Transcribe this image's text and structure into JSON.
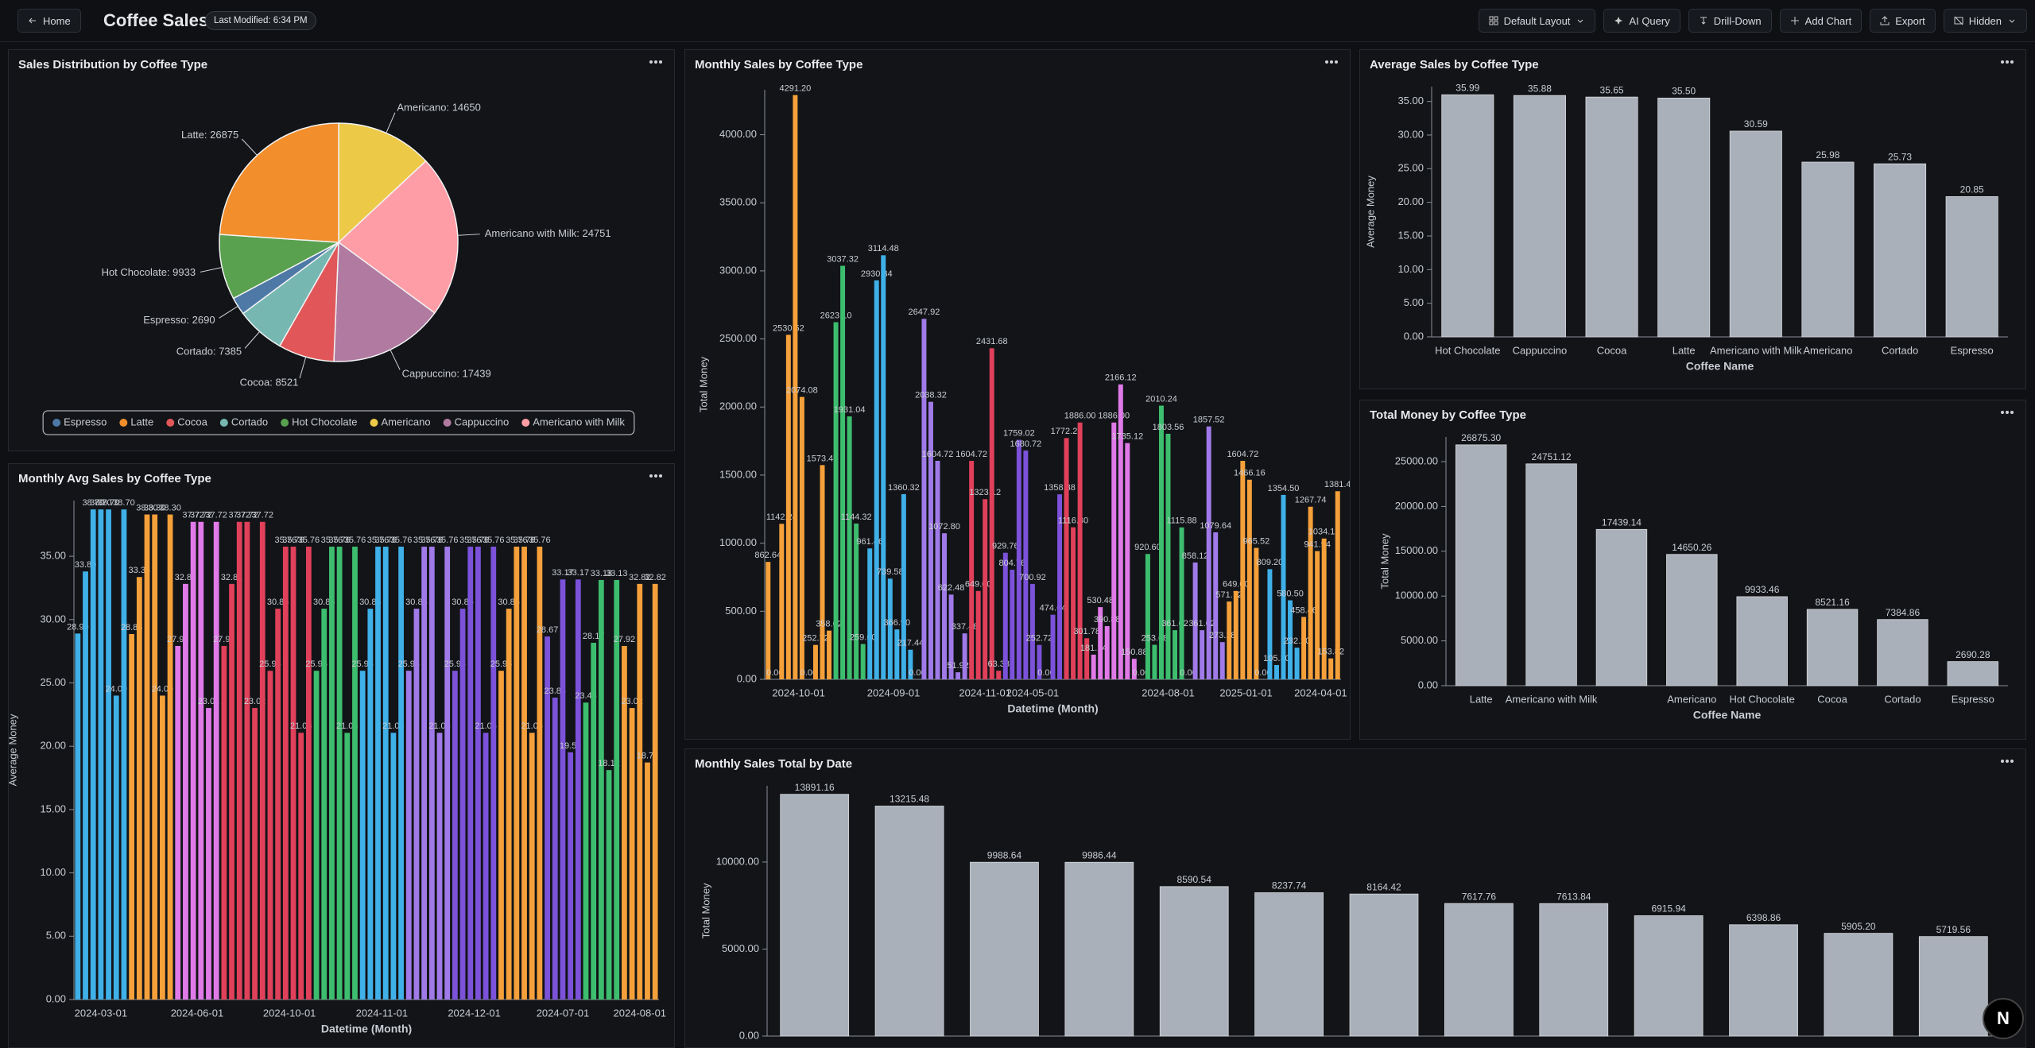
{
  "header": {
    "home": "Home",
    "title": "Coffee Sales",
    "modified": "Last Modified: 6:34 PM",
    "buttons": [
      "Default Layout",
      "AI Query",
      "Drill-Down",
      "Add Chart",
      "Export",
      "Hidden"
    ],
    "badge": "N"
  },
  "chart_data": [
    {
      "type": "pie",
      "title": "Sales Distribution by Coffee Type",
      "categories": [
        "Americano",
        "Americano with Milk",
        "Cappuccino",
        "Cocoa",
        "Cortado",
        "Espresso",
        "Hot Chocolate",
        "Latte"
      ],
      "values": [
        14650,
        24751,
        17439,
        8521,
        7385,
        2690,
        9933,
        26875
      ],
      "value_labels": [
        "Americano: 14650",
        "Americano with Milk: 24751",
        "Cappuccino: 17439",
        "Cocoa: 8521",
        "Cortado: 7385",
        "Espresso: 2690",
        "Hot Chocolate: 9933",
        "Latte: 26875"
      ],
      "colors": [
        "#edc948",
        "#ff9da7",
        "#b07aa1",
        "#e15759",
        "#76b7b2",
        "#4e79a7",
        "#59a14f",
        "#f28e2b"
      ],
      "legend": [
        "Espresso",
        "Latte",
        "Cocoa",
        "Cortado",
        "Hot Chocolate",
        "Americano",
        "Cappuccino",
        "Americano with Milk"
      ]
    },
    {
      "type": "bar",
      "title": "Monthly Sales by Coffee Type",
      "xlabel": "Datetime (Month)",
      "ylabel": "Total Money",
      "ylim": [
        0,
        4330
      ],
      "yticks": [
        {
          "value": 0,
          "label": "0.00"
        },
        {
          "value": 500,
          "label": "500.00"
        },
        {
          "value": 1000,
          "label": "1000.00"
        },
        {
          "value": 1500,
          "label": "1500.00"
        },
        {
          "value": 2000,
          "label": "2000.00"
        },
        {
          "value": 2500,
          "label": "2500.00"
        },
        {
          "value": 3000,
          "label": "3000.00"
        },
        {
          "value": 3500,
          "label": "3500.00"
        },
        {
          "value": 4000,
          "label": "4000.00"
        }
      ],
      "groups": [
        {
          "category": "2024-10-01",
          "color": "#f5a03a",
          "values": [
            862.64,
            0,
            1142.24,
            2530.52,
            4291.2,
            2074.08,
            0,
            252.72,
            1573.44,
            358.02
          ],
          "value_labels": [
            "862.64",
            "0.00",
            "1142.24",
            "2530.52",
            "4291.20",
            "2074.08",
            "0.00",
            "252.72",
            "1573.44",
            "358.02"
          ]
        },
        {
          "category": null,
          "color": "#3dbd6e",
          "values": [
            2623.1,
            3037.32,
            1931.04,
            1144.32,
            259.6
          ],
          "value_labels": [
            "2623.10",
            "3037.32",
            "1931.04",
            "1144.32",
            "259.60"
          ]
        },
        {
          "category": "2024-09-01",
          "color": "#3fb0e8",
          "values": [
            961.46,
            2930.34,
            3114.48,
            739.58,
            366.9,
            1360.32,
            217.44,
            0
          ],
          "value_labels": [
            "961.46",
            "2930.34",
            "3114.48",
            "739.58",
            "366.90",
            "1360.32",
            "217.44",
            "0.00"
          ]
        },
        {
          "category": null,
          "color": "#a07ae8",
          "values": [
            2647.92,
            2038.32,
            1604.72,
            1072.8,
            622.48,
            51.92,
            337.48
          ],
          "value_labels": [
            "2647.92",
            "2038.32",
            "1604.72",
            "1072.80",
            "622.48",
            "51.92",
            "337.48"
          ]
        },
        {
          "category": "2024-11-01",
          "color": "#e0405a",
          "values": [
            1604.72,
            649,
            1323.12,
            2431.68,
            63.38
          ],
          "value_labels": [
            "1604.72",
            "649.00",
            "1323.12",
            "2431.68",
            "63.38"
          ]
        },
        {
          "category": "2024-05-01",
          "color": "#7b52d9",
          "values": [
            929.76,
            804.76,
            1759.02,
            1680.72,
            700.92,
            252.72,
            0,
            474.64,
            1358.88
          ],
          "value_labels": [
            "929.76",
            "804.76",
            "1759.02",
            "1680.72",
            "700.92",
            "252.72",
            "0.00",
            "474.64",
            "1358.88"
          ]
        },
        {
          "category": null,
          "color": "#e0405a",
          "values": [
            1772.28,
            1116.8,
            1886,
            301.78
          ],
          "value_labels": [
            "1772.28",
            "1116.80",
            "1886.00",
            "301.78"
          ]
        },
        {
          "category": null,
          "color": "#e07ae8",
          "values": [
            181.14,
            530.48,
            390.88,
            1886,
            2166.12,
            1735.12,
            150.88,
            0
          ],
          "value_labels": [
            "181.14",
            "530.48",
            "390.88",
            "1886.00",
            "2166.12",
            "1735.12",
            "150.88",
            "0.00"
          ]
        },
        {
          "category": "2024-08-01",
          "color": "#3dbd6e",
          "values": [
            920.6,
            253.68,
            2010.24,
            1803.56,
            361.02,
            1115.88,
            0
          ],
          "value_labels": [
            "920.60",
            "253.68",
            "2010.24",
            "1803.56",
            "361.02",
            "1115.88",
            "0.00"
          ]
        },
        {
          "category": null,
          "color": "#a07ae8",
          "values": [
            858.12,
            361.02,
            1857.52,
            1079.64,
            273.28
          ],
          "value_labels": [
            "858.12",
            "361.02",
            "1857.52",
            "1079.64",
            "273.28"
          ]
        },
        {
          "category": "2025-01-01",
          "color": "#f5a03a",
          "values": [
            571.72,
            649,
            1604.72,
            1466.16,
            965.52,
            0
          ],
          "value_labels": [
            "571.72",
            "649.00",
            "1604.72",
            "1466.16",
            "965.52",
            "0.00"
          ]
        },
        {
          "category": null,
          "color": "#3fb0e8",
          "values": [
            809.2,
            105.3,
            1354.5,
            580.5,
            232.2
          ],
          "value_labels": [
            "809.20",
            "105.30",
            "1354.50",
            "580.50",
            "232.20"
          ]
        },
        {
          "category": "2024-04-01",
          "color": "#f5a03a",
          "values": [
            458.46,
            1267.74,
            941.94,
            1034.12,
            153.82,
            1381.4
          ],
          "value_labels": [
            "458.46",
            "1267.74",
            "941.94",
            "1034.12",
            "153.82",
            "1381.4"
          ]
        }
      ]
    },
    {
      "type": "bar",
      "title": "Average Sales by Coffee Type",
      "xlabel": "Coffee Name",
      "ylabel": "Average Money",
      "color": "#aab0b9",
      "categories": [
        "Hot Chocolate",
        "Cappuccino",
        "Cocoa",
        "Latte",
        "Americano with Milk",
        "Americano",
        "Cortado",
        "Espresso"
      ],
      "values": [
        35.99,
        35.88,
        35.65,
        35.5,
        30.59,
        25.98,
        25.73,
        20.85
      ],
      "value_labels": [
        "35.99",
        "35.88",
        "35.65",
        "35.50",
        "30.59",
        "25.98",
        "25.73",
        "20.85"
      ],
      "ylim": [
        0,
        37.2
      ],
      "yticks": [
        {
          "value": 0,
          "label": "0.00"
        },
        {
          "value": 5,
          "label": "5.00"
        },
        {
          "value": 10,
          "label": "10.00"
        },
        {
          "value": 15,
          "label": "15.00"
        },
        {
          "value": 20,
          "label": "20.00"
        },
        {
          "value": 25,
          "label": "25.00"
        },
        {
          "value": 30,
          "label": "30.00"
        },
        {
          "value": 35,
          "label": "35.00"
        }
      ]
    },
    {
      "type": "bar",
      "title": "Total Money by Coffee Type",
      "xlabel": "Coffee Name",
      "ylabel": "Total Money",
      "color": "#aab0b9",
      "categories": [
        "Latte",
        "Americano with Milk",
        null,
        "Americano",
        "Hot Chocolate",
        "Cocoa",
        "Cortado",
        "Espresso"
      ],
      "values": [
        26875.3,
        24751.12,
        17439.14,
        14650.26,
        9933.46,
        8521.16,
        7384.86,
        2690.28
      ],
      "value_labels": [
        "26875.30",
        "24751.12",
        "17439.14",
        "14650.26",
        "9933.46",
        "8521.16",
        "7384.86",
        "2690.28"
      ],
      "ylim": [
        0,
        27750
      ],
      "yticks": [
        {
          "value": 0,
          "label": "0.00"
        },
        {
          "value": 5000,
          "label": "5000.00"
        },
        {
          "value": 10000,
          "label": "10000.00"
        },
        {
          "value": 15000,
          "label": "15000.00"
        },
        {
          "value": 20000,
          "label": "20000.00"
        },
        {
          "value": 25000,
          "label": "25000.00"
        }
      ]
    },
    {
      "type": "bar",
      "title": "Monthly Avg Sales by Coffee Type",
      "xlabel": "Datetime (Month)",
      "ylabel": "Average Money",
      "ylim": [
        0,
        39.4
      ],
      "yticks": [
        {
          "value": 0,
          "label": "0.00"
        },
        {
          "value": 5,
          "label": "5.00"
        },
        {
          "value": 10,
          "label": "10.00"
        },
        {
          "value": 15,
          "label": "15.00"
        },
        {
          "value": 20,
          "label": "20.00"
        },
        {
          "value": 25,
          "label": "25.00"
        },
        {
          "value": 30,
          "label": "30.00"
        },
        {
          "value": 35,
          "label": "35.00"
        }
      ],
      "groups": [
        {
          "category": "2024-03-01",
          "color": "#3fb0e8",
          "values": [
            28.9,
            33.8,
            38.7,
            38.7,
            38.7,
            24,
            38.7
          ],
          "value_labels": [
            "28.90",
            "33.80",
            "38.70",
            "38.70",
            "38.70",
            "24.00",
            "38.70"
          ]
        },
        {
          "category": null,
          "color": "#f5a03a",
          "values": [
            28.86,
            33.36,
            38.3,
            38.3,
            24,
            38.3
          ],
          "value_labels": [
            "28.86",
            "33.36",
            "38.30",
            "38.30",
            "24.00",
            "38.30"
          ]
        },
        {
          "category": "2024-06-01",
          "color": "#e07ae8",
          "values": [
            27.92,
            32.82,
            37.72,
            37.72,
            23.02,
            37.72
          ],
          "value_labels": [
            "27.92",
            "32.82",
            "37.72",
            "37.72",
            "23.02",
            "37.72"
          ]
        },
        {
          "category": null,
          "color": "#e0405a",
          "values": [
            27.92,
            32.82,
            37.72,
            37.72,
            23.02,
            37.72
          ],
          "value_labels": [
            "27.92",
            "32.82",
            "37.72",
            "37.72",
            "23.02",
            "37.72"
          ]
        },
        {
          "category": "2024-10-01",
          "color": "#e0405a",
          "values": [
            25.96,
            30.86,
            35.76,
            35.76,
            21.06,
            35.76
          ],
          "value_labels": [
            "25.96",
            "30.86",
            "35.76",
            "35.76",
            "21.06",
            "35.76"
          ]
        },
        {
          "category": null,
          "color": "#3dbd6e",
          "values": [
            25.96,
            30.86,
            35.76,
            35.76,
            21.06,
            35.76
          ],
          "value_labels": [
            "25.96",
            "30.86",
            "35.76",
            "35.76",
            "21.06",
            "35.76"
          ]
        },
        {
          "category": "2024-11-01",
          "color": "#3fb0e8",
          "values": [
            25.96,
            30.86,
            35.76,
            35.76,
            21.06,
            35.76
          ],
          "value_labels": [
            "25.96",
            "30.86",
            "35.76",
            "35.76",
            "21.06",
            "35.76"
          ]
        },
        {
          "category": null,
          "color": "#a07ae8",
          "values": [
            25.96,
            30.86,
            35.76,
            35.76,
            21.06,
            35.76
          ],
          "value_labels": [
            "25.96",
            "30.86",
            "35.76",
            "35.76",
            "21.06",
            "35.76"
          ]
        },
        {
          "category": "2024-12-01",
          "color": "#7b52d9",
          "values": [
            25.96,
            30.86,
            35.76,
            35.76,
            21.06,
            35.76
          ],
          "value_labels": [
            "25.96",
            "30.86",
            "35.76",
            "35.76",
            "21.06",
            "35.76"
          ]
        },
        {
          "category": null,
          "color": "#f5a03a",
          "values": [
            25.96,
            30.86,
            35.76,
            35.76,
            21.06,
            35.76
          ],
          "value_labels": [
            "25.96",
            "30.86",
            "35.76",
            "35.76",
            "21.06",
            "35.76"
          ]
        },
        {
          "category": "2024-07-01",
          "color": "#7b52d9",
          "values": [
            28.67,
            23.84,
            33.17,
            19.52,
            33.17
          ],
          "value_labels": [
            "28.67",
            "23.84",
            "33.17",
            "19.52",
            "33.17"
          ]
        },
        {
          "category": null,
          "color": "#3dbd6e",
          "values": [
            23.45,
            28.17,
            33.13,
            18.12,
            33.13
          ],
          "value_labels": [
            "23.45",
            "28.17",
            "33.13",
            "18.12",
            "33.13"
          ]
        },
        {
          "category": "2024-08-01",
          "color": "#f5a03a",
          "values": [
            27.92,
            23.02,
            32.82,
            18.72,
            32.82
          ],
          "value_labels": [
            "27.92",
            "23.02",
            "32.82",
            "18.72",
            "32.82"
          ]
        }
      ]
    },
    {
      "type": "bar",
      "title": "Monthly Sales Total by Date",
      "ylabel": "Total Money",
      "color": "#aab0b9",
      "categories": [
        null,
        null,
        null,
        null,
        null,
        null,
        null,
        null,
        null,
        null,
        null,
        null,
        null
      ],
      "values": [
        13891.16,
        13215.48,
        9988.64,
        9986.44,
        8590.54,
        8237.74,
        8164.42,
        7617.76,
        7613.84,
        6915.94,
        6398.86,
        5905.2,
        5719.56
      ],
      "value_labels": [
        "13891.16",
        "13215.48",
        "9988.64",
        "9986.44",
        "8590.54",
        "8237.74",
        "8164.42",
        "7617.76",
        "7613.84",
        "6915.94",
        "6398.86",
        "5905.20",
        "5719.56"
      ],
      "ylim": [
        0,
        14380
      ],
      "yticks": [
        {
          "value": 0,
          "label": "0.00"
        },
        {
          "value": 5000,
          "label": "5000.00"
        },
        {
          "value": 10000,
          "label": "10000.00"
        }
      ]
    }
  ]
}
